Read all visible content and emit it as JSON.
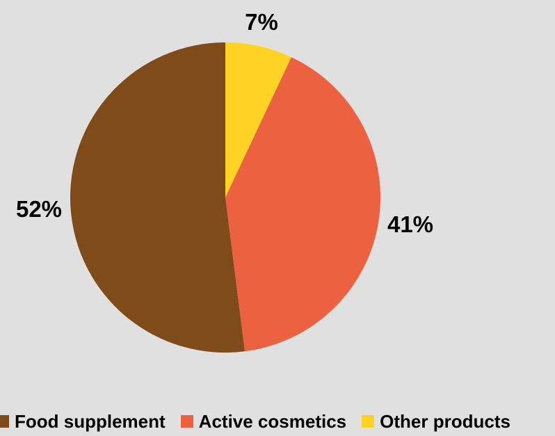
{
  "chart_data": {
    "type": "pie",
    "title": "",
    "slices": [
      {
        "name": "Food supplement",
        "value": 52,
        "label": "52%",
        "color": "#7f4b18"
      },
      {
        "name": "Active cosmetics",
        "value": 41,
        "label": "41%",
        "color": "#ec6240"
      },
      {
        "name": "Other products",
        "value": 7,
        "label": "7%",
        "color": "#ffd324"
      }
    ],
    "legend_position": "bottom",
    "legend_order": [
      "Food supplement",
      "Active cosmetics",
      "Other products"
    ],
    "background": "#e0e0e0"
  }
}
